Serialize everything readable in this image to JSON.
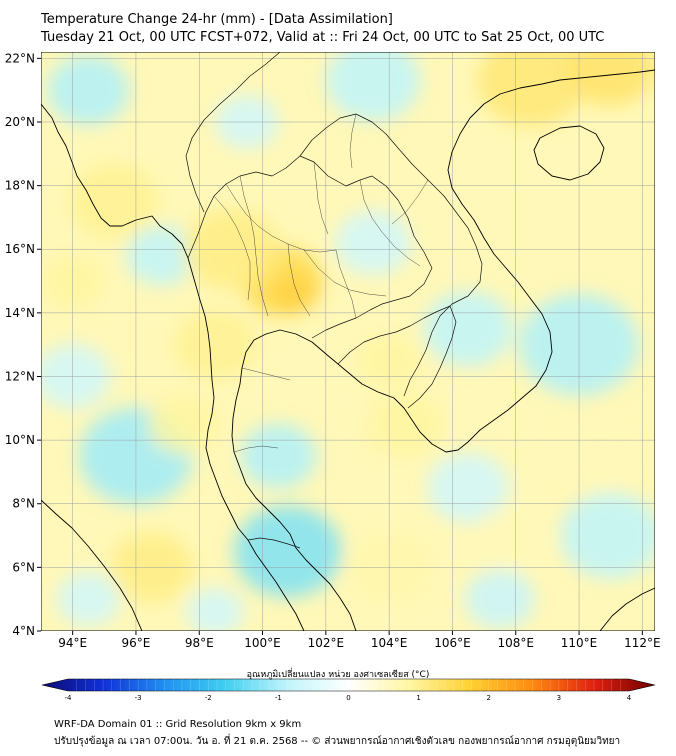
{
  "header": {
    "title": "Temperature Change 24-hr (mm) - [Data Assimilation]",
    "subtitle": "Tuesday 21 Oct, 00 UTC FCST+072, Valid at :: Fri 24 Oct, 00 UTC to Sat 25 Oct, 00 UTC"
  },
  "map": {
    "lat_range": [
      4,
      22.2
    ],
    "lon_range": [
      93,
      112.4
    ],
    "lat_ticks": [
      {
        "value": 4,
        "label": "4°N"
      },
      {
        "value": 6,
        "label": "6°N"
      },
      {
        "value": 8,
        "label": "8°N"
      },
      {
        "value": 10,
        "label": "10°N"
      },
      {
        "value": 12,
        "label": "12°N"
      },
      {
        "value": 14,
        "label": "14°N"
      },
      {
        "value": 16,
        "label": "16°N"
      },
      {
        "value": 18,
        "label": "18°N"
      },
      {
        "value": 20,
        "label": "20°N"
      },
      {
        "value": 22,
        "label": "22°N"
      }
    ],
    "lon_ticks": [
      {
        "value": 94,
        "label": "94°E"
      },
      {
        "value": 96,
        "label": "96°E"
      },
      {
        "value": 98,
        "label": "98°E"
      },
      {
        "value": 100,
        "label": "100°E"
      },
      {
        "value": 102,
        "label": "102°E"
      },
      {
        "value": 104,
        "label": "104°E"
      },
      {
        "value": 106,
        "label": "106°E"
      },
      {
        "value": 108,
        "label": "108°E"
      },
      {
        "value": 110,
        "label": "110°E"
      },
      {
        "value": 112,
        "label": "112°E"
      }
    ],
    "gridlines": true,
    "background_color": "#fff8b8",
    "warm_blobs": [
      {
        "lon": 108.5,
        "lat": 21.3,
        "r": 1.7,
        "value": 1.1
      },
      {
        "lon": 111.0,
        "lat": 21.7,
        "r": 1.4,
        "value": 1.2
      },
      {
        "lon": 101.0,
        "lat": 14.6,
        "r": 0.7,
        "value": 2.2
      },
      {
        "lon": 100.6,
        "lat": 15.0,
        "r": 1.3,
        "value": 1.4
      },
      {
        "lon": 99.0,
        "lat": 16.0,
        "r": 1.5,
        "value": 1.0
      },
      {
        "lon": 98.5,
        "lat": 13.0,
        "r": 1.3,
        "value": 0.9
      },
      {
        "lon": 95.3,
        "lat": 17.5,
        "r": 1.4,
        "value": 0.9
      },
      {
        "lon": 94.0,
        "lat": 15.0,
        "r": 1.0,
        "value": 0.8
      },
      {
        "lon": 96.5,
        "lat": 6.0,
        "r": 1.3,
        "value": 1.0
      },
      {
        "lon": 97.5,
        "lat": 10.5,
        "r": 1.1,
        "value": 0.8
      },
      {
        "lon": 104.5,
        "lat": 10.5,
        "r": 1.2,
        "value": 0.8
      },
      {
        "lon": 104.0,
        "lat": 6.0,
        "r": 1.3,
        "value": 0.7
      },
      {
        "lon": 108.0,
        "lat": 7.0,
        "r": 1.2,
        "value": 0.6
      },
      {
        "lon": 104.0,
        "lat": 12.5,
        "r": 1.0,
        "value": 0.8
      },
      {
        "lon": 110.5,
        "lat": 9.5,
        "r": 1.2,
        "value": 0.6
      }
    ],
    "cool_blobs": [
      {
        "lon": 94.5,
        "lat": 21.0,
        "r": 1.3,
        "value": -0.9
      },
      {
        "lon": 103.5,
        "lat": 21.3,
        "r": 1.5,
        "value": -0.8
      },
      {
        "lon": 99.5,
        "lat": 20.0,
        "r": 1.0,
        "value": -0.6
      },
      {
        "lon": 96.8,
        "lat": 15.8,
        "r": 1.1,
        "value": -0.8
      },
      {
        "lon": 103.5,
        "lat": 16.2,
        "r": 1.2,
        "value": -0.6
      },
      {
        "lon": 106.5,
        "lat": 13.5,
        "r": 1.4,
        "value": -0.8
      },
      {
        "lon": 96.0,
        "lat": 9.5,
        "r": 1.8,
        "value": -1.0
      },
      {
        "lon": 100.8,
        "lat": 6.5,
        "r": 1.7,
        "value": -1.2
      },
      {
        "lon": 100.5,
        "lat": 9.5,
        "r": 1.2,
        "value": -0.9
      },
      {
        "lon": 110.0,
        "lat": 13.0,
        "r": 1.9,
        "value": -0.9
      },
      {
        "lon": 111.0,
        "lat": 7.0,
        "r": 1.6,
        "value": -0.8
      },
      {
        "lon": 94.0,
        "lat": 12.0,
        "r": 1.2,
        "value": -0.6
      },
      {
        "lon": 106.5,
        "lat": 8.5,
        "r": 1.3,
        "value": -0.6
      },
      {
        "lon": 107.5,
        "lat": 5.0,
        "r": 1.1,
        "value": -0.7
      },
      {
        "lon": 94.5,
        "lat": 5.0,
        "r": 1.0,
        "value": -0.6
      },
      {
        "lon": 98.5,
        "lat": 4.6,
        "r": 0.9,
        "value": -0.6
      }
    ]
  },
  "colorbar": {
    "title": "อุณหภูมิเปลี่ยนแปลง หน่วย องศาเซลเซียส (°C)",
    "min": -4,
    "max": 4,
    "ticks": [
      {
        "value": -4,
        "label": "-4"
      },
      {
        "value": -3,
        "label": "-3"
      },
      {
        "value": -2,
        "label": "-2"
      },
      {
        "value": -1,
        "label": "-1"
      },
      {
        "value": 0,
        "label": "0"
      },
      {
        "value": 1,
        "label": "1"
      },
      {
        "value": 2,
        "label": "2"
      },
      {
        "value": 3,
        "label": "3"
      },
      {
        "value": 4,
        "label": "4"
      }
    ],
    "stops": [
      "#0a0a70",
      "#1030d8",
      "#2090f0",
      "#40d0f0",
      "#c0f4fa",
      "#ffffff",
      "#fff6a0",
      "#ffd030",
      "#ff8a10",
      "#e02010",
      "#700000"
    ]
  },
  "footer": {
    "line1": "WRF-DA Domain 01 :: Grid Resolution 9km x 9km",
    "line2": "ปรับปรุงข้อมูล ณ เวลา 07:00น. วัน อ. ที่ 21 ต.ค. 2568 -- © ส่วนพยากรณ์อากาศเชิงตัวเลข กองพยากรณ์อากาศ กรมอุตุนิยมวิทยา"
  },
  "colors": {
    "coastline": "#000000",
    "gridline": "#9aa0a6"
  }
}
